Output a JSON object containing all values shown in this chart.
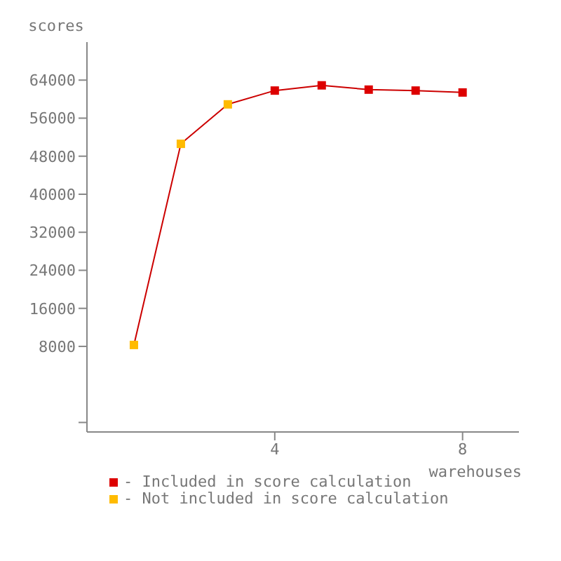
{
  "chart_data": {
    "type": "line",
    "ylabel": "scores",
    "xlabel": "warehouses",
    "xlim": [
      0,
      9.2
    ],
    "xticks": [
      4,
      8
    ],
    "ylim": [
      -10000,
      72000
    ],
    "yticks": [
      {
        "value": -8000,
        "label": null
      },
      8000,
      16000,
      24000,
      32000,
      40000,
      48000,
      56000,
      64000
    ],
    "series": [
      {
        "color": "#cc0000",
        "x": [
          1,
          2,
          3,
          4,
          5,
          6,
          7,
          8
        ],
        "values": [
          8300,
          50600,
          58900,
          61800,
          62900,
          62000,
          61800,
          61400
        ],
        "marker": "none"
      },
      {
        "type": "scatter",
        "name": "- Not included in score calculation",
        "color": "#ffbb00",
        "x": [
          1,
          2,
          3
        ],
        "values": [
          8300,
          50600,
          58900
        ],
        "marker": "square"
      },
      {
        "type": "scatter",
        "name": "- Included in score calculation",
        "color": "#dd0000",
        "x": [
          4,
          5,
          6,
          7,
          8
        ],
        "values": [
          61800,
          62900,
          62000,
          61800,
          61400
        ],
        "marker": "square"
      }
    ],
    "legend": "bottom left",
    "grid": false
  }
}
